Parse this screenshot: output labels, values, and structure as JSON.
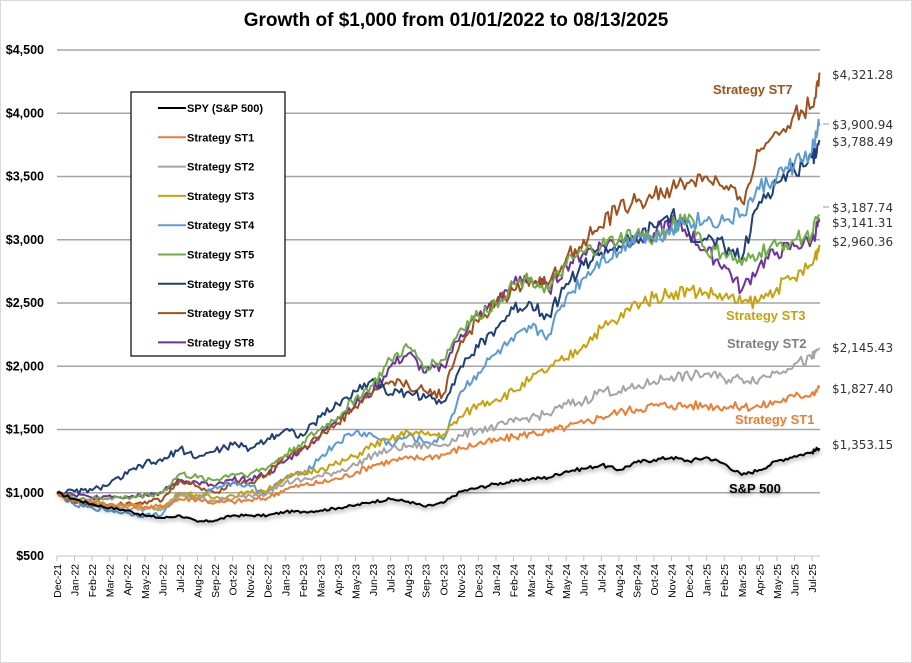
{
  "chart_data": {
    "type": "line",
    "title": "Growth of $1,000 from 01/01/2022 to 08/13/2025",
    "xlabel": "",
    "ylabel": "",
    "ylim": [
      500,
      4500
    ],
    "yticks": [
      "$500",
      "$1,000",
      "$1,500",
      "$2,000",
      "$2,500",
      "$3,000",
      "$3,500",
      "$4,000",
      "$4,500"
    ],
    "ytick_values": [
      500,
      1000,
      1500,
      2000,
      2500,
      3000,
      3500,
      4000,
      4500
    ],
    "grid": true,
    "legend_position": "top-left",
    "x": [
      "Dec-21",
      "Jan-22",
      "Feb-22",
      "Mar-22",
      "Apr-22",
      "May-22",
      "Jun-22",
      "Jul-22",
      "Aug-22",
      "Sep-22",
      "Oct-22",
      "Nov-22",
      "Dec-22",
      "Jan-23",
      "Feb-23",
      "Mar-23",
      "Apr-23",
      "May-23",
      "Jun-23",
      "Jul-23",
      "Aug-23",
      "Sep-23",
      "Oct-23",
      "Nov-23",
      "Dec-23",
      "Jan-24",
      "Feb-24",
      "Mar-24",
      "Apr-24",
      "May-24",
      "Jun-24",
      "Jul-24",
      "Aug-24",
      "Sep-24",
      "Oct-24",
      "Nov-24",
      "Dec-24",
      "Jan-25",
      "Feb-25",
      "Mar-25",
      "Apr-25",
      "May-25",
      "Jun-25",
      "Jul-25",
      "Aug-13-25"
    ],
    "xtick_labels": [
      "Dec-21",
      "Jan-22",
      "Feb-22",
      "Mar-22",
      "Apr-22",
      "May-22",
      "Jun-22",
      "Jul-22",
      "Aug-22",
      "Sep-22",
      "Oct-22",
      "Nov-22",
      "Dec-22",
      "Jan-23",
      "Feb-23",
      "Mar-23",
      "Apr-23",
      "May-23",
      "Jun-23",
      "Jul-23",
      "Aug-23",
      "Sep-23",
      "Oct-23",
      "Nov-23",
      "Dec-23",
      "Jan-24",
      "Feb-24",
      "Mar-24",
      "Apr-24",
      "May-24",
      "Jun-24",
      "Jul-24",
      "Aug-24",
      "Sep-24",
      "Oct-24",
      "Nov-24",
      "Dec-24",
      "Jan-25",
      "Feb-25",
      "Mar-25",
      "Apr-25",
      "May-25",
      "Jun-25",
      "Jul-25"
    ],
    "series": [
      {
        "name": "SPY (S&P 500)",
        "color": "#000000",
        "end_label": "$1,353.15",
        "annotation": "S&P 500",
        "values": [
          1000,
          950,
          910,
          880,
          860,
          820,
          800,
          820,
          770,
          780,
          820,
          820,
          820,
          850,
          850,
          860,
          880,
          900,
          930,
          950,
          930,
          890,
          920,
          1010,
          1040,
          1070,
          1090,
          1110,
          1120,
          1170,
          1190,
          1220,
          1180,
          1240,
          1260,
          1280,
          1250,
          1280,
          1230,
          1140,
          1180,
          1250,
          1290,
          1320,
          1353.15
        ]
      },
      {
        "name": "Strategy ST1",
        "color": "#ED7D31",
        "end_label": "$1,827.40",
        "annotation": "Strategy ST1",
        "values": [
          1000,
          940,
          930,
          910,
          900,
          890,
          890,
          950,
          950,
          920,
          930,
          940,
          960,
          1030,
          1060,
          1080,
          1110,
          1160,
          1220,
          1250,
          1270,
          1280,
          1300,
          1350,
          1390,
          1410,
          1440,
          1470,
          1480,
          1520,
          1550,
          1600,
          1640,
          1660,
          1690,
          1690,
          1690,
          1690,
          1680,
          1680,
          1680,
          1720,
          1760,
          1790,
          1827.4
        ]
      },
      {
        "name": "Strategy ST2",
        "color": "#A5A5A5",
        "end_label": "$2,145.43",
        "annotation": "Strategy ST2",
        "values": [
          1000,
          940,
          920,
          900,
          880,
          870,
          870,
          980,
          960,
          940,
          950,
          980,
          1000,
          1080,
          1100,
          1130,
          1170,
          1220,
          1300,
          1340,
          1370,
          1370,
          1380,
          1450,
          1500,
          1520,
          1560,
          1600,
          1620,
          1700,
          1720,
          1810,
          1800,
          1830,
          1880,
          1920,
          1920,
          1940,
          1900,
          1900,
          1900,
          1960,
          2020,
          2060,
          2145.43
        ]
      },
      {
        "name": "Strategy ST3",
        "color": "#C9A10B",
        "end_label": "$2,960.36",
        "annotation": "Strategy ST3",
        "values": [
          1000,
          940,
          920,
          900,
          900,
          880,
          880,
          1000,
          980,
          960,
          980,
          1000,
          1020,
          1120,
          1150,
          1190,
          1230,
          1290,
          1380,
          1420,
          1480,
          1460,
          1460,
          1600,
          1700,
          1740,
          1800,
          1900,
          1980,
          2060,
          2170,
          2300,
          2370,
          2500,
          2540,
          2580,
          2600,
          2580,
          2550,
          2500,
          2520,
          2620,
          2700,
          2800,
          2960.36
        ]
      },
      {
        "name": "Strategy ST4",
        "color": "#5B9BD5",
        "end_label": "$3,900.94",
        "annotation": "",
        "values": [
          1000,
          900,
          880,
          860,
          840,
          820,
          830,
          1000,
          950,
          1050,
          1080,
          1050,
          1000,
          1120,
          1150,
          1280,
          1400,
          1480,
          1450,
          1380,
          1450,
          1400,
          1420,
          1800,
          1950,
          2100,
          2200,
          2300,
          2250,
          2550,
          2700,
          2850,
          2900,
          3050,
          3000,
          3100,
          3150,
          3150,
          3150,
          3200,
          3400,
          3500,
          3600,
          3700,
          3900.94
        ]
      },
      {
        "name": "Strategy ST5",
        "color": "#70AD47",
        "end_label": "$3,187.74",
        "annotation": "",
        "values": [
          1000,
          960,
          950,
          960,
          960,
          980,
          1000,
          1150,
          1120,
          1100,
          1150,
          1150,
          1200,
          1300,
          1400,
          1500,
          1600,
          1750,
          1850,
          2050,
          2150,
          2000,
          2050,
          2300,
          2400,
          2500,
          2650,
          2700,
          2600,
          2800,
          2900,
          2950,
          3000,
          3050,
          3000,
          3100,
          3200,
          2900,
          2900,
          2800,
          2900,
          2950,
          3000,
          3050,
          3187.74
        ]
      },
      {
        "name": "Strategy ST6",
        "color": "#1F3F77",
        "end_label": "$3,788.49",
        "annotation": "",
        "values": [
          1000,
          1010,
          1020,
          1070,
          1150,
          1230,
          1250,
          1350,
          1280,
          1330,
          1380,
          1350,
          1430,
          1500,
          1450,
          1600,
          1700,
          1800,
          1900,
          1780,
          1800,
          1750,
          1720,
          2000,
          2150,
          2300,
          2450,
          2500,
          2400,
          2650,
          2800,
          2900,
          2950,
          3000,
          3100,
          3200,
          3050,
          3000,
          2950,
          2850,
          3300,
          3450,
          3550,
          3650,
          3788.49
        ]
      },
      {
        "name": "Strategy ST7",
        "color": "#A0501A",
        "end_label": "$4,321.28",
        "annotation": "Strategy ST7",
        "values": [
          1000,
          920,
          900,
          910,
          920,
          930,
          940,
          1100,
          1050,
          1000,
          1080,
          1080,
          1150,
          1300,
          1350,
          1450,
          1550,
          1680,
          1800,
          1880,
          1850,
          1800,
          1780,
          2200,
          2350,
          2500,
          2600,
          2700,
          2650,
          2850,
          3000,
          3100,
          3250,
          3300,
          3350,
          3400,
          3450,
          3500,
          3400,
          3300,
          3700,
          3850,
          4000,
          4050,
          4321.28
        ]
      },
      {
        "name": "Strategy ST8",
        "color": "#7030A0",
        "end_label": "$3,141.31",
        "annotation": "",
        "values": [
          1000,
          980,
          960,
          980,
          970,
          990,
          1000,
          1100,
          1080,
          1050,
          1100,
          1110,
          1150,
          1250,
          1350,
          1450,
          1600,
          1700,
          1800,
          2000,
          2100,
          1950,
          2000,
          2250,
          2400,
          2500,
          2650,
          2700,
          2600,
          2800,
          2900,
          2950,
          3000,
          3000,
          3050,
          3150,
          3050,
          2900,
          2800,
          2600,
          2800,
          2900,
          2950,
          3000,
          3141.31
        ]
      }
    ]
  }
}
